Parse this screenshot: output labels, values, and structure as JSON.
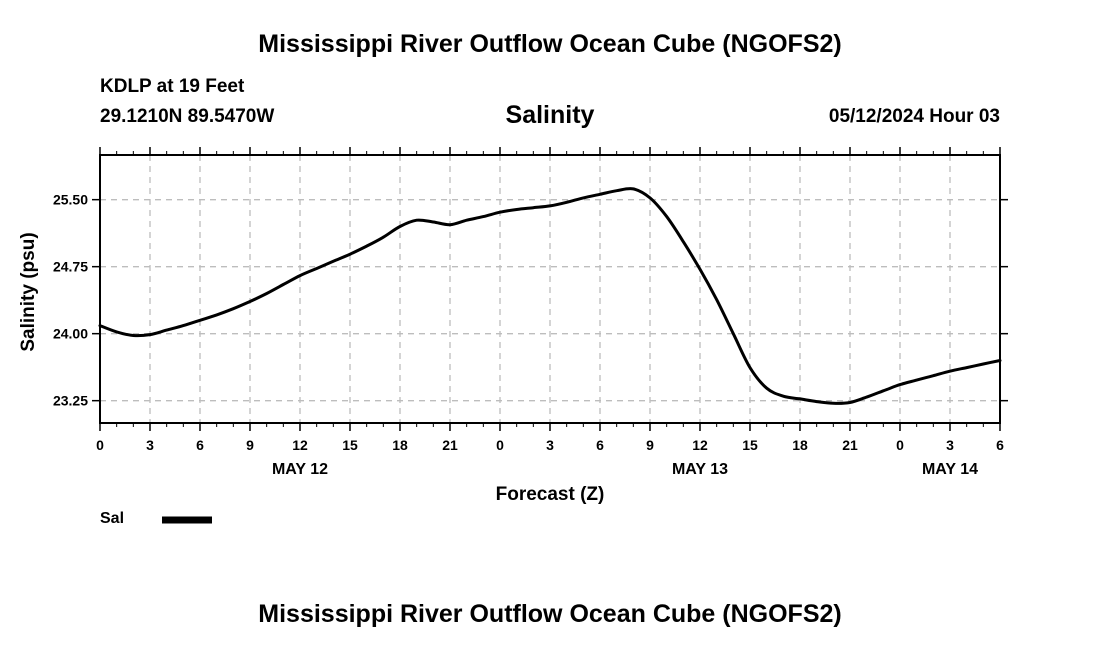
{
  "header": {
    "title": "Mississippi River Outflow Ocean Cube (NGOFS2)",
    "station": "KDLP at 19 Feet",
    "coords": "29.1210N  89.5470W",
    "date": "05/12/2024 Hour 03"
  },
  "legend": {
    "label": "Sal"
  },
  "footer": {
    "title": "Mississippi River Outflow Ocean Cube (NGOFS2)"
  },
  "chart_data": {
    "type": "line",
    "title": "Salinity",
    "xlabel": "Forecast (Z)",
    "ylabel": "Salinity (psu)",
    "xlim": [
      0,
      54
    ],
    "ylim": [
      23.0,
      26.0
    ],
    "x_ticks": [
      0,
      3,
      6,
      9,
      12,
      15,
      18,
      21,
      24,
      27,
      30,
      33,
      36,
      39,
      42,
      45,
      48,
      51,
      54
    ],
    "x_tick_labels": [
      "0",
      "3",
      "6",
      "9",
      "12",
      "15",
      "18",
      "21",
      "0",
      "3",
      "6",
      "9",
      "12",
      "15",
      "18",
      "21",
      "0",
      "3",
      "6"
    ],
    "y_ticks": [
      23.25,
      24.0,
      24.75,
      25.5
    ],
    "y_tick_labels": [
      "23.25",
      "24.00",
      "24.75",
      "25.50"
    ],
    "date_labels": [
      {
        "x": 12,
        "label": "MAY 12"
      },
      {
        "x": 36,
        "label": "MAY 13"
      },
      {
        "x": 51,
        "label": "MAY 14"
      }
    ],
    "grid": true,
    "series": [
      {
        "name": "Sal",
        "x": [
          0,
          1,
          2,
          3,
          4,
          5,
          6,
          7,
          8,
          9,
          10,
          11,
          12,
          13,
          14,
          15,
          16,
          17,
          18,
          19,
          20,
          21,
          22,
          23,
          24,
          25,
          26,
          27,
          28,
          29,
          30,
          31,
          32,
          33,
          34,
          35,
          36,
          37,
          38,
          39,
          40,
          41,
          42,
          43,
          44,
          45,
          46,
          47,
          48,
          49,
          50,
          51,
          52,
          53,
          54
        ],
        "values": [
          24.09,
          24.02,
          23.98,
          23.99,
          24.04,
          24.09,
          24.15,
          24.21,
          24.28,
          24.36,
          24.45,
          24.55,
          24.65,
          24.73,
          24.81,
          24.89,
          24.98,
          25.08,
          25.2,
          25.27,
          25.25,
          25.22,
          25.27,
          25.31,
          25.36,
          25.39,
          25.41,
          25.43,
          25.47,
          25.52,
          25.56,
          25.6,
          25.62,
          25.52,
          25.31,
          25.03,
          24.72,
          24.38,
          24.0,
          23.62,
          23.39,
          23.3,
          23.27,
          23.24,
          23.22,
          23.23,
          23.29,
          23.36,
          23.43,
          23.48,
          23.53,
          23.58,
          23.62,
          23.66,
          23.7
        ]
      }
    ]
  }
}
